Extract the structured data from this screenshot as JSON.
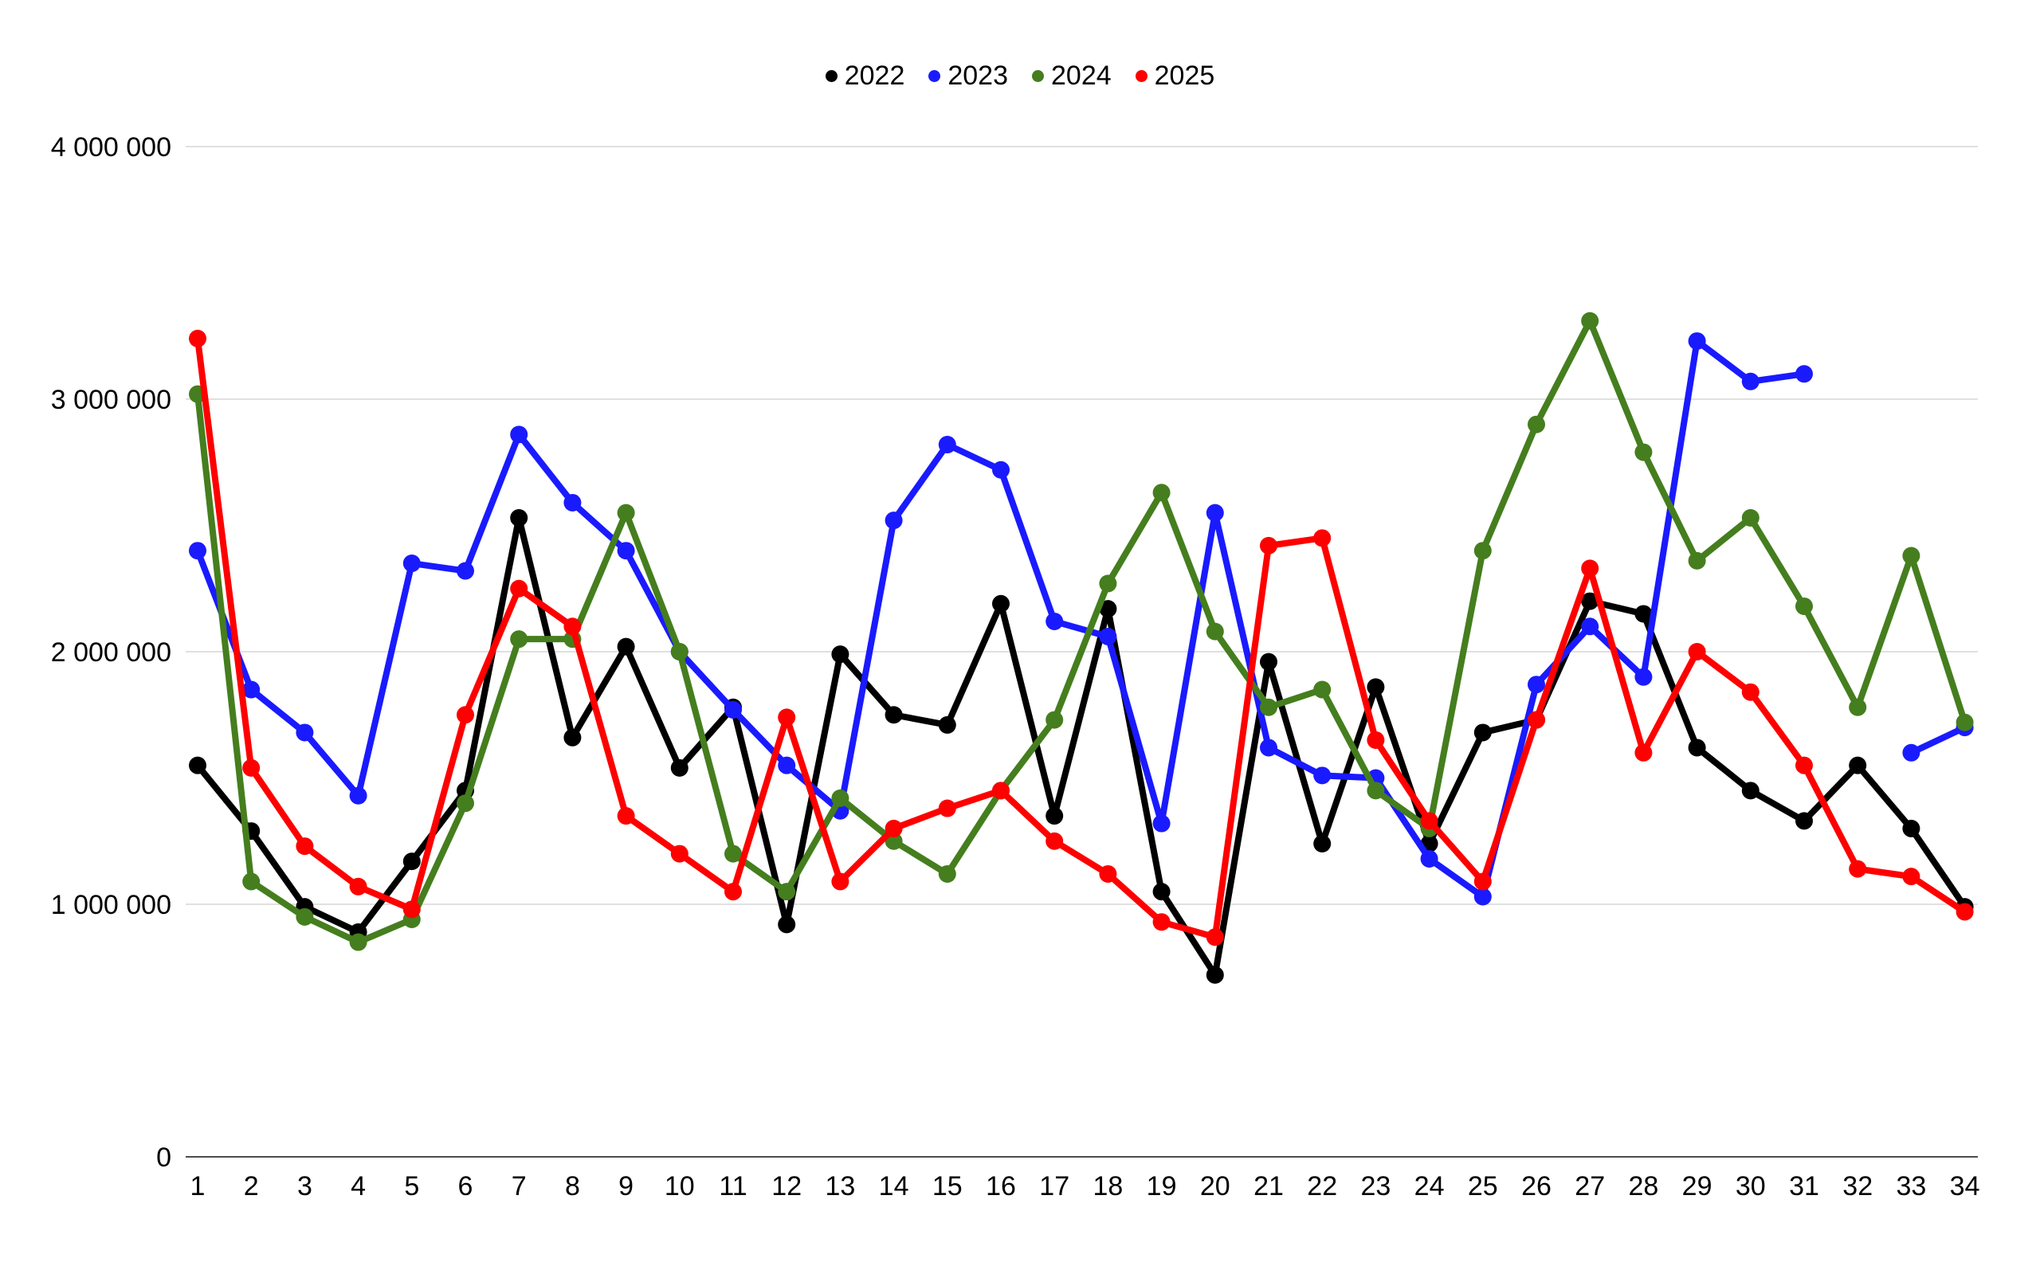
{
  "chart_data": {
    "type": "line",
    "title": "",
    "legend_position": "top-center",
    "grid": true,
    "colors": {
      "grid_line": "#e0e0e0",
      "axis_line": "#4d4d4d",
      "background": "#ffffff",
      "text": "#000000"
    },
    "x_categories": [
      "1",
      "2",
      "3",
      "4",
      "5",
      "6",
      "7",
      "8",
      "9",
      "10",
      "11",
      "12",
      "13",
      "14",
      "15",
      "16",
      "17",
      "18",
      "19",
      "20",
      "21",
      "22",
      "23",
      "24",
      "25",
      "26",
      "27",
      "28",
      "29",
      "30",
      "31",
      "32",
      "33",
      "34"
    ],
    "y_axis": {
      "min": 0,
      "max": 4000000,
      "ticks": [
        {
          "value": 4000000,
          "label": "4 000 000"
        },
        {
          "value": 3000000,
          "label": "3 000 000"
        },
        {
          "value": 2000000,
          "label": "2 000 000"
        },
        {
          "value": 1000000,
          "label": "1 000 000"
        },
        {
          "value": 0,
          "label": "0"
        }
      ]
    },
    "series": [
      {
        "name": "2022",
        "color": "#000000",
        "values": [
          1550000,
          1290000,
          990000,
          890000,
          1170000,
          1450000,
          2530000,
          1660000,
          2020000,
          1540000,
          1780000,
          920000,
          1990000,
          1750000,
          1710000,
          2190000,
          1350000,
          2170000,
          1050000,
          720000,
          1960000,
          1240000,
          1860000,
          1240000,
          1680000,
          1730000,
          2200000,
          2150000,
          1620000,
          1450000,
          1330000,
          1550000,
          1300000,
          990000
        ]
      },
      {
        "name": "2023",
        "color": "#1a1aff",
        "values": [
          2400000,
          1850000,
          1680000,
          1430000,
          2350000,
          2320000,
          2860000,
          2590000,
          2400000,
          2000000,
          1770000,
          1550000,
          1370000,
          2520000,
          2820000,
          2720000,
          2120000,
          2060000,
          1320000,
          2550000,
          1620000,
          1510000,
          1500000,
          1180000,
          1030000,
          1870000,
          2100000,
          1900000,
          3230000,
          3070000,
          3100000,
          null,
          1600000,
          1700000
        ]
      },
      {
        "name": "2024",
        "color": "#457e1e",
        "values": [
          3020000,
          1090000,
          950000,
          850000,
          940000,
          1400000,
          2050000,
          2050000,
          2550000,
          2000000,
          1200000,
          1050000,
          1420000,
          1250000,
          1120000,
          1450000,
          1730000,
          2270000,
          2630000,
          2080000,
          1780000,
          1850000,
          1450000,
          1300000,
          2400000,
          2900000,
          3310000,
          2790000,
          2360000,
          2530000,
          2180000,
          1780000,
          2380000,
          1720000
        ]
      },
      {
        "name": "2025",
        "color": "#fe0000",
        "values": [
          3240000,
          1540000,
          1230000,
          1070000,
          980000,
          1750000,
          2250000,
          2100000,
          1350000,
          1200000,
          1050000,
          1740000,
          1090000,
          1300000,
          1380000,
          1450000,
          1250000,
          1120000,
          930000,
          870000,
          2420000,
          2450000,
          1650000,
          1330000,
          1090000,
          1730000,
          2330000,
          1600000,
          2000000,
          1840000,
          1550000,
          1140000,
          1110000,
          970000
        ]
      }
    ]
  }
}
